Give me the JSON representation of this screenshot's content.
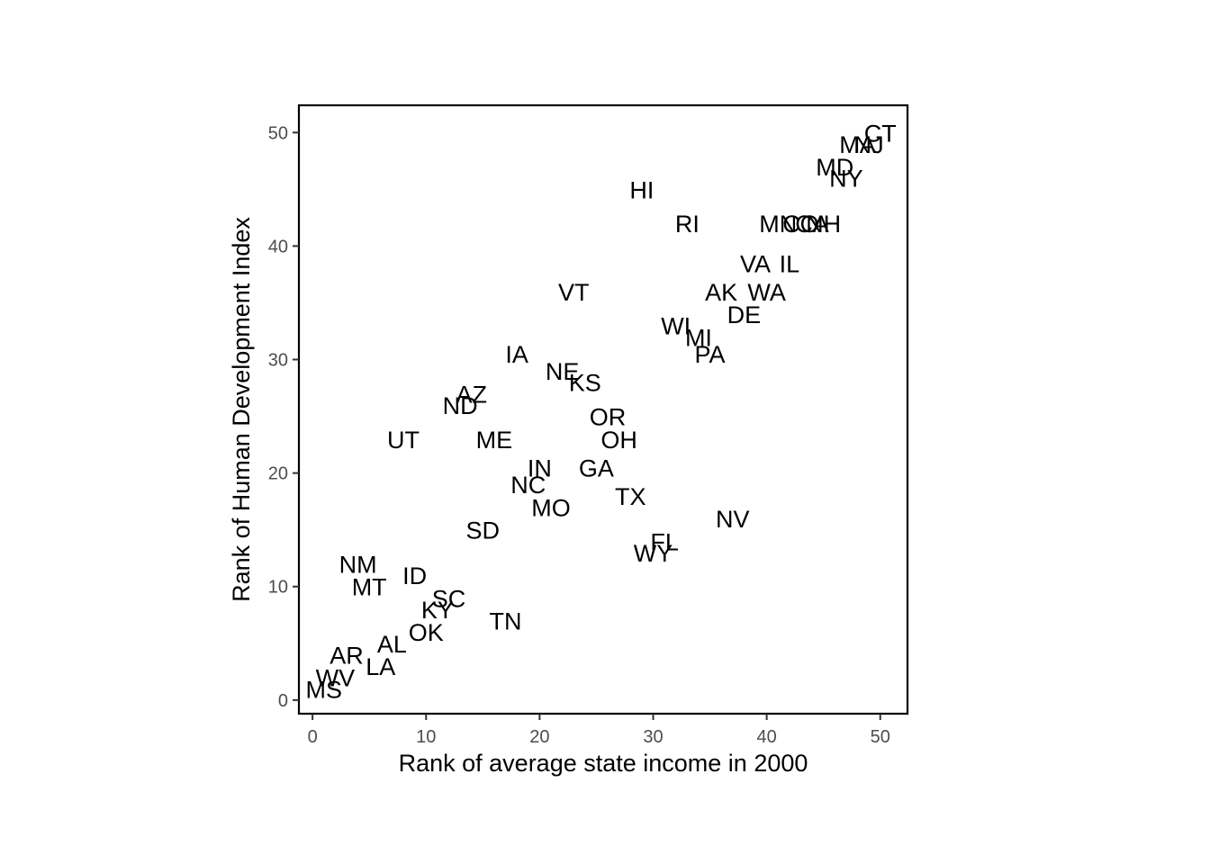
{
  "chart_data": {
    "type": "scatter",
    "title": "",
    "xlabel": "Rank of average state income in 2000",
    "ylabel": "Rank of Human Development Index",
    "xlim": [
      -1.2,
      52.4
    ],
    "ylim": [
      -1.2,
      52.4
    ],
    "x_ticks": [
      0,
      10,
      20,
      30,
      40,
      50
    ],
    "y_ticks": [
      0,
      10,
      20,
      30,
      40,
      50
    ],
    "grid": false,
    "legend": "none",
    "marker": "text-label",
    "points": [
      {
        "label": "CT",
        "x": 50,
        "y": 50
      },
      {
        "label": "NJ",
        "x": 49,
        "y": 49
      },
      {
        "label": "MA",
        "x": 48,
        "y": 49
      },
      {
        "label": "MD",
        "x": 46,
        "y": 47
      },
      {
        "label": "NY",
        "x": 47,
        "y": 46
      },
      {
        "label": "HI",
        "x": 29,
        "y": 45
      },
      {
        "label": "RI",
        "x": 33,
        "y": 42
      },
      {
        "label": "MN",
        "x": 41,
        "y": 42
      },
      {
        "label": "CO",
        "x": 43,
        "y": 42
      },
      {
        "label": "CA",
        "x": 44,
        "y": 42
      },
      {
        "label": "NH",
        "x": 45,
        "y": 42
      },
      {
        "label": "VA",
        "x": 39,
        "y": 38.5
      },
      {
        "label": "IL",
        "x": 42,
        "y": 38.5
      },
      {
        "label": "VT",
        "x": 23,
        "y": 36
      },
      {
        "label": "AK",
        "x": 36,
        "y": 36
      },
      {
        "label": "WA",
        "x": 40,
        "y": 36
      },
      {
        "label": "DE",
        "x": 38,
        "y": 34
      },
      {
        "label": "WI",
        "x": 32,
        "y": 33
      },
      {
        "label": "MI",
        "x": 34,
        "y": 32
      },
      {
        "label": "PA",
        "x": 35,
        "y": 30.5
      },
      {
        "label": "IA",
        "x": 18,
        "y": 30.5
      },
      {
        "label": "NE",
        "x": 22,
        "y": 29
      },
      {
        "label": "KS",
        "x": 24,
        "y": 28
      },
      {
        "label": "AZ",
        "x": 14,
        "y": 27
      },
      {
        "label": "ND",
        "x": 13,
        "y": 26
      },
      {
        "label": "OR",
        "x": 26,
        "y": 25
      },
      {
        "label": "OH",
        "x": 27,
        "y": 23
      },
      {
        "label": "UT",
        "x": 8,
        "y": 23
      },
      {
        "label": "ME",
        "x": 16,
        "y": 23
      },
      {
        "label": "IN",
        "x": 20,
        "y": 20.5
      },
      {
        "label": "GA",
        "x": 25,
        "y": 20.5
      },
      {
        "label": "NC",
        "x": 19,
        "y": 19
      },
      {
        "label": "TX",
        "x": 28,
        "y": 18
      },
      {
        "label": "MO",
        "x": 21,
        "y": 17
      },
      {
        "label": "NV",
        "x": 37,
        "y": 16
      },
      {
        "label": "SD",
        "x": 15,
        "y": 15
      },
      {
        "label": "FL",
        "x": 31,
        "y": 14
      },
      {
        "label": "WY",
        "x": 30,
        "y": 13
      },
      {
        "label": "NM",
        "x": 4,
        "y": 12
      },
      {
        "label": "ID",
        "x": 9,
        "y": 11
      },
      {
        "label": "MT",
        "x": 5,
        "y": 10
      },
      {
        "label": "SC",
        "x": 12,
        "y": 9
      },
      {
        "label": "KY",
        "x": 11,
        "y": 8
      },
      {
        "label": "TN",
        "x": 17,
        "y": 7
      },
      {
        "label": "OK",
        "x": 10,
        "y": 6
      },
      {
        "label": "AL",
        "x": 7,
        "y": 5
      },
      {
        "label": "AR",
        "x": 3,
        "y": 4
      },
      {
        "label": "LA",
        "x": 6,
        "y": 3
      },
      {
        "label": "WV",
        "x": 2,
        "y": 2
      },
      {
        "label": "MS",
        "x": 1,
        "y": 1
      }
    ]
  }
}
